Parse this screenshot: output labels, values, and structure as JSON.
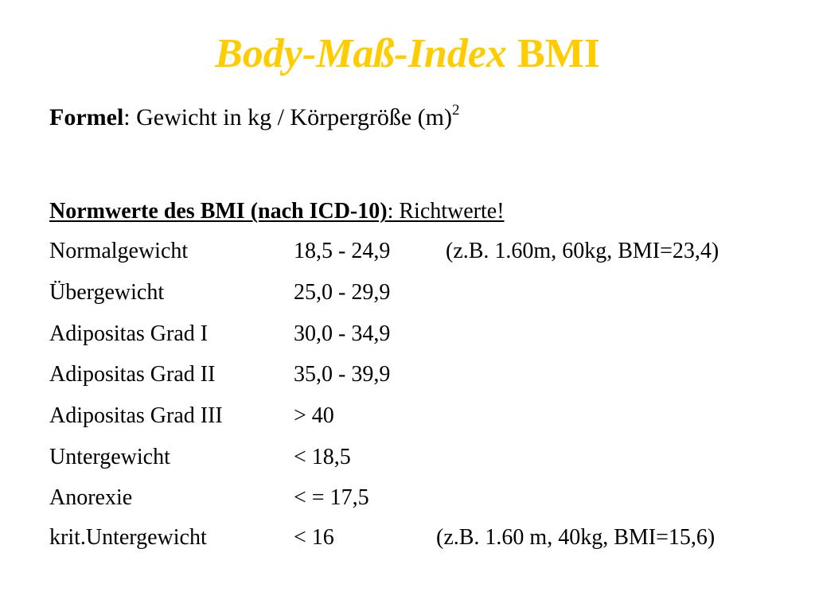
{
  "title": {
    "italic_part": "Body-Maß-Index",
    "regular_part": "BMI"
  },
  "formula": {
    "label": "Formel",
    "separator": ":",
    "text": "Gewicht in kg / Körpergröße (m)",
    "exponent": "2"
  },
  "norm_heading": {
    "bold_part": "Normwerte des BMI (nach ICD-10)",
    "rest": ": Richtwerte!"
  },
  "rows": [
    {
      "category": "Normalgewicht",
      "range": "18,5 - 24,9",
      "example": "(z.B. 1.60m, 60kg, BMI=23,4)"
    },
    {
      "category": "Übergewicht",
      "range": "25,0 - 29,9",
      "example": ""
    },
    {
      "category": "Adipositas Grad I",
      "range": "30,0 - 34,9",
      "example": ""
    },
    {
      "category": "Adipositas Grad II",
      "range": "35,0 - 39,9",
      "example": ""
    },
    {
      "category": "Adipositas Grad III",
      "range": "> 40",
      "example": ""
    },
    {
      "category": "Untergewicht",
      "range": "< 18,5",
      "example": ""
    },
    {
      "category": "Anorexie",
      "range": "< = 17,5",
      "example": ""
    },
    {
      "category": "krit.Untergewicht",
      "range": "< 16",
      "example": "(z.B. 1.60 m, 40kg, BMI=15,6)"
    }
  ],
  "colors": {
    "title": "#ffcc00",
    "text": "#000000",
    "background": "#ffffff"
  }
}
